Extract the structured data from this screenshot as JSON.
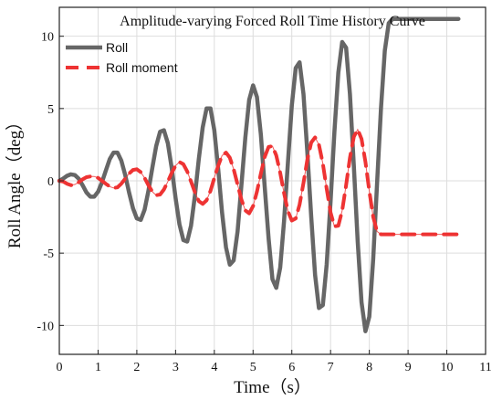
{
  "chart_data": {
    "type": "line",
    "title": "Amplitude-varying Forced Roll Time History Curve",
    "xlabel": "Time（s）",
    "ylabel": "Roll Angle（deg）",
    "xlim": [
      0,
      11
    ],
    "ylim": [
      -12,
      12
    ],
    "x_ticks": [
      0,
      1,
      2,
      3,
      4,
      5,
      6,
      7,
      8,
      9,
      10,
      11
    ],
    "y_ticks": [
      -10,
      -5,
      0,
      5,
      10
    ],
    "grid": true,
    "legend_position": "top-left",
    "x": [
      0,
      0.1,
      0.2,
      0.3,
      0.4,
      0.5,
      0.6,
      0.7,
      0.8,
      0.9,
      1.0,
      1.1,
      1.2,
      1.3,
      1.4,
      1.5,
      1.6,
      1.7,
      1.8,
      1.9,
      2.0,
      2.1,
      2.2,
      2.3,
      2.4,
      2.5,
      2.6,
      2.7,
      2.8,
      2.9,
      3.0,
      3.1,
      3.2,
      3.3,
      3.4,
      3.5,
      3.6,
      3.7,
      3.8,
      3.9,
      4.0,
      4.1,
      4.2,
      4.3,
      4.4,
      4.5,
      4.6,
      4.7,
      4.8,
      4.9,
      5.0,
      5.1,
      5.2,
      5.3,
      5.4,
      5.5,
      5.6,
      5.7,
      5.8,
      5.9,
      6.0,
      6.1,
      6.2,
      6.3,
      6.4,
      6.5,
      6.6,
      6.7,
      6.8,
      6.9,
      7.0,
      7.1,
      7.2,
      7.3,
      7.4,
      7.5,
      7.6,
      7.7,
      7.8,
      7.9,
      8.0,
      8.1,
      8.2,
      8.3,
      8.4,
      8.5,
      8.6,
      8.7,
      8.8,
      8.9,
      9.0,
      9.1,
      9.2,
      9.3,
      9.4,
      9.5,
      9.6,
      9.7,
      9.8,
      9.9,
      10.0,
      10.1,
      10.2,
      10.3
    ],
    "series": [
      {
        "name": "Roll",
        "color": "#666666",
        "style": "solid",
        "values": [
          0,
          0.15,
          0.35,
          0.45,
          0.4,
          0.15,
          -0.3,
          -0.8,
          -1.1,
          -1.1,
          -0.75,
          -0.1,
          0.7,
          1.5,
          1.95,
          1.95,
          1.4,
          0.4,
          -0.8,
          -1.9,
          -2.6,
          -2.7,
          -2.0,
          -0.7,
          0.9,
          2.4,
          3.4,
          3.5,
          2.6,
          0.9,
          -1.2,
          -3.0,
          -4.1,
          -4.2,
          -3.1,
          -1.0,
          1.5,
          3.7,
          5.0,
          5.0,
          3.5,
          0.8,
          -2.2,
          -4.6,
          -5.8,
          -5.5,
          -3.5,
          -0.3,
          3.0,
          5.6,
          6.6,
          5.8,
          3.2,
          -0.4,
          -4.0,
          -6.8,
          -7.4,
          -6.0,
          -2.8,
          1.3,
          5.2,
          7.8,
          8.2,
          6.0,
          2.0,
          -2.5,
          -6.5,
          -8.8,
          -8.6,
          -5.8,
          -1.4,
          3.4,
          7.5,
          9.6,
          9.2,
          6.0,
          1.0,
          -4.2,
          -8.4,
          -10.4,
          -9.4,
          -5.4,
          -0.2,
          5.0,
          9.0,
          10.9,
          11.2,
          11.2,
          11.2,
          11.2,
          11.2,
          11.2,
          11.2,
          11.2,
          11.2,
          11.2,
          11.2,
          11.2,
          11.2,
          11.2,
          11.2,
          11.2,
          11.2,
          11.2
        ]
      },
      {
        "name": "Roll moment",
        "color": "#ee3333",
        "style": "dashed",
        "values": [
          0,
          -0.05,
          -0.2,
          -0.3,
          -0.25,
          -0.1,
          0.1,
          0.25,
          0.3,
          0.3,
          0.2,
          0.0,
          -0.2,
          -0.4,
          -0.5,
          -0.45,
          -0.2,
          0.15,
          0.5,
          0.75,
          0.8,
          0.6,
          0.2,
          -0.3,
          -0.75,
          -1.0,
          -0.95,
          -0.6,
          -0.05,
          0.55,
          1.05,
          1.3,
          1.15,
          0.65,
          -0.05,
          -0.8,
          -1.4,
          -1.6,
          -1.35,
          -0.7,
          0.2,
          1.05,
          1.75,
          1.95,
          1.6,
          0.8,
          -0.25,
          -1.3,
          -2.05,
          -2.25,
          -1.75,
          -0.75,
          0.5,
          1.65,
          2.35,
          2.4,
          1.75,
          0.55,
          -0.85,
          -2.1,
          -2.75,
          -2.6,
          -1.65,
          -0.15,
          1.45,
          2.65,
          3.0,
          2.5,
          1.2,
          -0.55,
          -2.2,
          -3.15,
          -3.1,
          -2.05,
          -0.3,
          1.6,
          3.05,
          3.55,
          2.9,
          1.3,
          -0.7,
          -2.5,
          -3.5,
          -3.7,
          -3.7,
          -3.7,
          -3.7,
          -3.7,
          -3.7,
          -3.7,
          -3.7,
          -3.7,
          -3.7,
          -3.7,
          -3.7,
          -3.7,
          -3.7,
          -3.7,
          -3.7,
          -3.7,
          -3.7,
          -3.7,
          -3.7,
          -3.7
        ]
      }
    ]
  }
}
